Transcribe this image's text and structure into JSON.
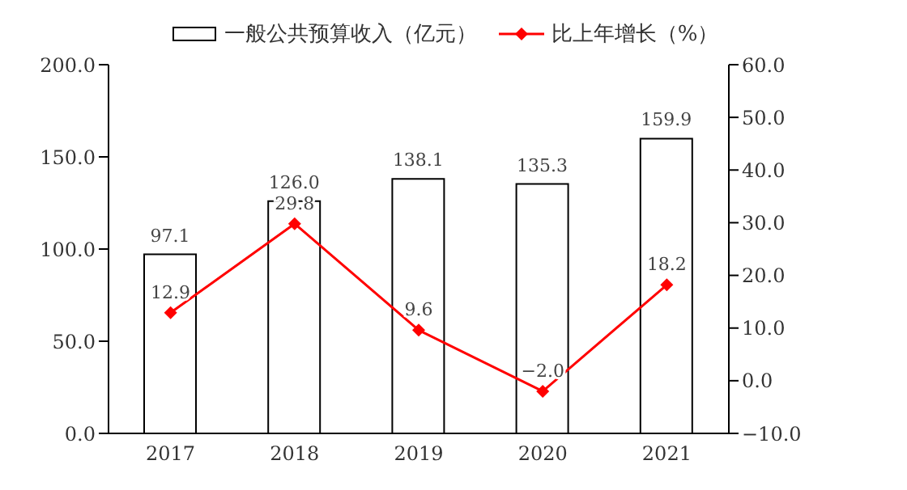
{
  "chart_data": {
    "type": "bar",
    "categories": [
      "2017",
      "2018",
      "2019",
      "2020",
      "2021"
    ],
    "series": [
      {
        "name": "一般公共预算收入（亿元）",
        "color": "#ffffff",
        "values": [
          97.1,
          126.0,
          138.1,
          135.3,
          159.9
        ],
        "value_labels": [
          "97.1",
          "126.0",
          "138.1",
          "135.3",
          "159.9"
        ]
      },
      {
        "name": "比上年增长（%）",
        "type": "line",
        "axis": "y2",
        "color": "#ff0000",
        "values": [
          12.9,
          29.8,
          9.6,
          -2.0,
          18.2
        ],
        "value_labels": [
          "12.9",
          "29.8",
          "9.6",
          "−2.0",
          "18.2"
        ],
        "marker": "diamond"
      }
    ],
    "ylim": [
      0,
      200
    ],
    "yticks": [
      {
        "value": 0,
        "label": "0.0"
      },
      {
        "value": 50,
        "label": "50.0"
      },
      {
        "value": 100,
        "label": "100.0"
      },
      {
        "value": 150,
        "label": "150.0"
      },
      {
        "value": 200,
        "label": "200.0"
      }
    ],
    "y2lim": [
      -10,
      60
    ],
    "y2ticks": [
      {
        "value": -10,
        "label": "−10.0"
      },
      {
        "value": 0,
        "label": "0.0"
      },
      {
        "value": 10,
        "label": "10.0"
      },
      {
        "value": 20,
        "label": "20.0"
      },
      {
        "value": 30,
        "label": "30.0"
      },
      {
        "value": 40,
        "label": "40.0"
      },
      {
        "value": 50,
        "label": "50.0"
      },
      {
        "value": 60,
        "label": "60.0"
      }
    ],
    "legend": "top",
    "grid": false
  }
}
